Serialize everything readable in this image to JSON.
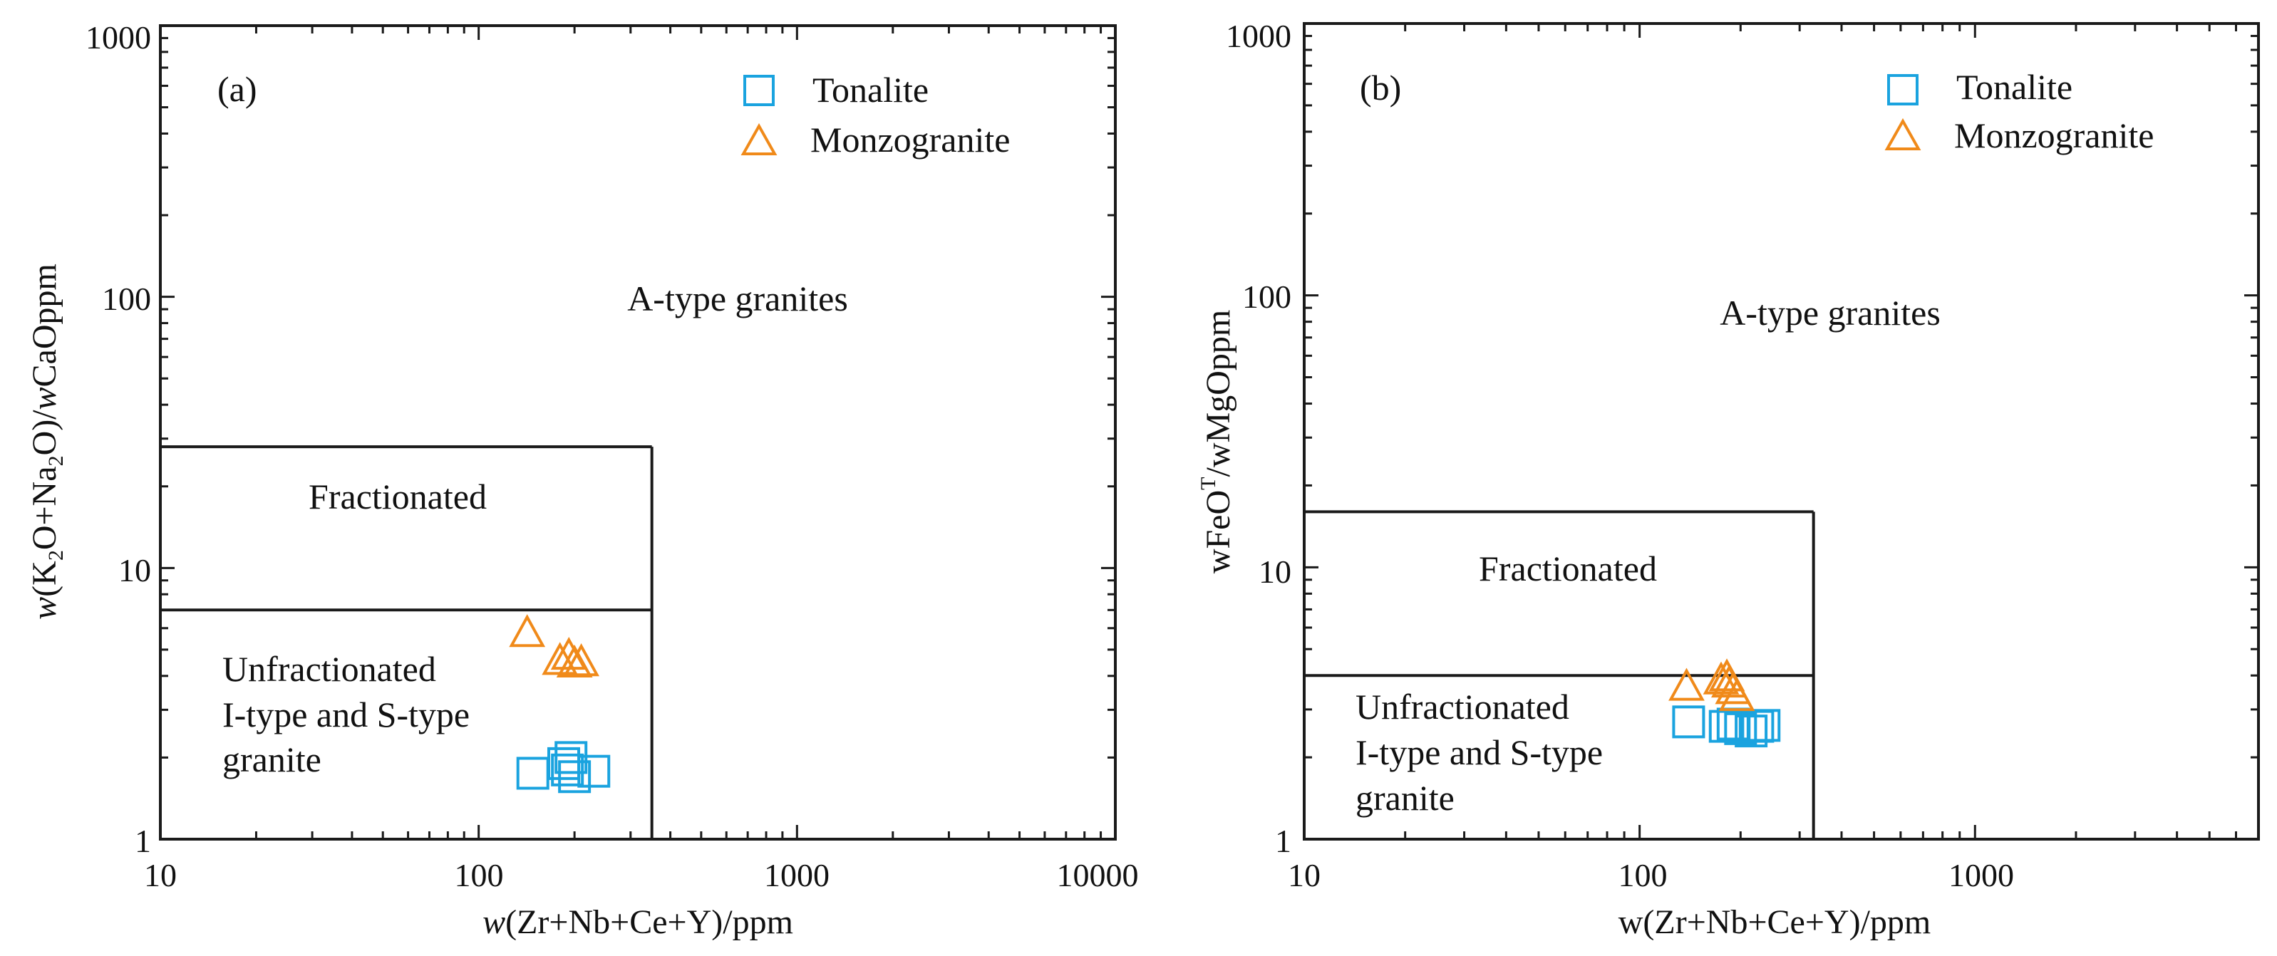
{
  "colors": {
    "tonalite": "#1aa3df",
    "monzogranite": "#f08a1a",
    "axis": "#1a1a1a"
  },
  "chart_data": [
    {
      "type": "scatter",
      "panel_label": "(a)",
      "x_scale": "log",
      "y_scale": "log",
      "xlim": [
        10,
        10000
      ],
      "ylim": [
        1,
        1000
      ],
      "x_ticks": [
        10,
        100,
        1000,
        10000
      ],
      "y_ticks": [
        1,
        10,
        100,
        1000
      ],
      "x_tick_labels": [
        "10",
        "100",
        "1000",
        "10000"
      ],
      "y_tick_labels": [
        "1",
        "10",
        "100",
        "1000"
      ],
      "xlabel": {
        "pre": "w",
        "text": "(Zr+Nb+Ce+Y)/ppm"
      },
      "ylabel": {
        "w1": "w",
        "t1": "(K",
        "s1": "2",
        "t2": "O+Na",
        "s2": "2",
        "t3": "O)/",
        "w2": "w",
        "t4": "CaOppm"
      },
      "boundaries": {
        "x_max": 350,
        "fractionated_top": 28,
        "unfractionated_top": 7
      },
      "regions": {
        "a_type": "A-type granites",
        "fractionated": "Fractionated",
        "unfractionated": [
          "Unfractionated",
          "I-type and S-type",
          "granite"
        ]
      },
      "legend": [
        "Tonalite",
        "Monzogranite"
      ],
      "series": [
        {
          "name": "Tonalite",
          "marker": "square",
          "points": [
            [
              148,
              1.75
            ],
            [
              185,
              1.9
            ],
            [
              195,
              2.0
            ],
            [
              200,
              1.7
            ],
            [
              190,
              1.8
            ],
            [
              230,
              1.78
            ]
          ]
        },
        {
          "name": "Monzogranite",
          "marker": "triangle",
          "points": [
            [
              142,
              5.7
            ],
            [
              180,
              4.5
            ],
            [
              192,
              4.7
            ],
            [
              200,
              4.4
            ],
            [
              210,
              4.45
            ]
          ]
        }
      ]
    },
    {
      "type": "scatter",
      "panel_label": "(b)",
      "x_scale": "log",
      "y_scale": "log",
      "xlim": [
        10,
        7000
      ],
      "ylim": [
        1,
        1000
      ],
      "x_ticks": [
        10,
        100,
        1000
      ],
      "y_ticks": [
        1,
        10,
        100,
        1000
      ],
      "x_tick_labels": [
        "10",
        "100",
        "1000"
      ],
      "y_tick_labels": [
        "1",
        "10",
        "100",
        "1000"
      ],
      "xlabel": {
        "pre": "",
        "text": "w(Zr+Nb+Ce+Y)/ppm"
      },
      "ylabel": {
        "t1": "wFeO",
        "sup": "T",
        "t2": "/wMgOppm"
      },
      "boundaries": {
        "x_max": 330,
        "fractionated_top": 16,
        "unfractionated_top": 4
      },
      "regions": {
        "a_type": "A-type granites",
        "fractionated": "Fractionated",
        "unfractionated": [
          "Unfractionated",
          "I-type and S-type",
          "granite"
        ]
      },
      "legend": [
        "Tonalite",
        "Monzogranite"
      ],
      "series": [
        {
          "name": "Tonalite",
          "marker": "square",
          "points": [
            [
              140,
              2.7
            ],
            [
              180,
              2.6
            ],
            [
              200,
              2.55
            ],
            [
              215,
              2.5
            ],
            [
              225,
              2.6
            ],
            [
              235,
              2.62
            ],
            [
              190,
              2.65
            ]
          ]
        },
        {
          "name": "Monzogranite",
          "marker": "triangle",
          "points": [
            [
              138,
              3.6
            ],
            [
              175,
              3.8
            ],
            [
              182,
              3.9
            ],
            [
              190,
              3.5
            ],
            [
              195,
              3.3
            ],
            [
              185,
              3.7
            ]
          ]
        }
      ]
    }
  ]
}
